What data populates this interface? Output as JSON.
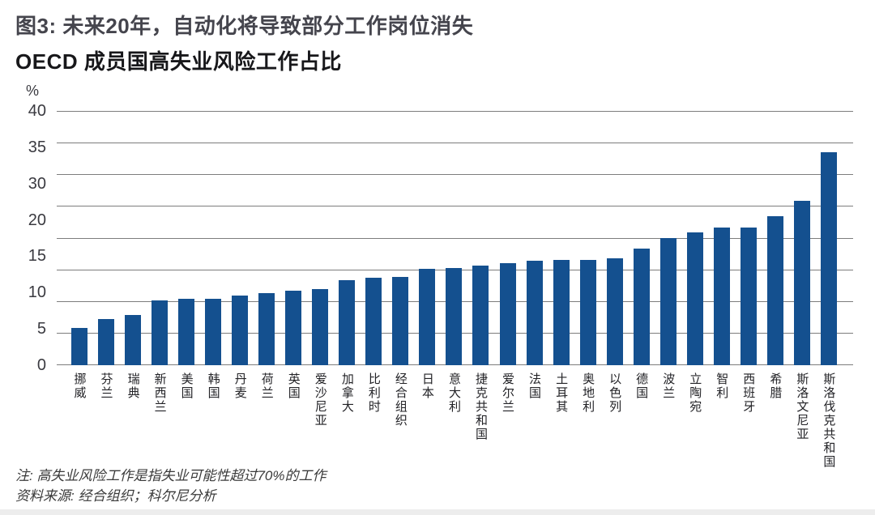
{
  "figure": {
    "title": "图3: 未来20年，自动化将导致部分工作岗位消失",
    "subtitle": "OECD 成员国高失业风险工作占比",
    "unit_label": "%",
    "note": "注: 高失业风险工作是指失业可能性超过70%的工作",
    "source": "资料来源: 经合组织；科尔尼分析"
  },
  "colors": {
    "bar": "#14508f",
    "gridline": "#7d7d7d",
    "title_text": "#45454d",
    "subtitle_text": "#17171a",
    "axis_text": "#3a3a40",
    "note_text": "#3a3a3a"
  },
  "chart_data": {
    "type": "bar",
    "title": "OECD 成员国高失业风险工作占比",
    "xlabel": "",
    "ylabel": "%",
    "ylim": [
      0,
      40
    ],
    "grid": true,
    "gridline_values": [
      0,
      5,
      10,
      15,
      20,
      25,
      30,
      35,
      40
    ],
    "y_axis_labels_top_to_bottom": [
      "40",
      "35",
      "30",
      "20",
      "15",
      "10",
      "5",
      "0"
    ],
    "categories": [
      "挪威",
      "芬兰",
      "瑞典",
      "新西兰",
      "美国",
      "韩国",
      "丹麦",
      "荷兰",
      "英国",
      "爱沙尼亚",
      "加拿大",
      "比利时",
      "经合组织",
      "日本",
      "意大利",
      "捷克共和国",
      "爱尔兰",
      "法国",
      "土耳其",
      "奥地利",
      "以色列",
      "德国",
      "波兰",
      "立陶宛",
      "智利",
      "西班牙",
      "希腊",
      "斯洛文尼亚",
      "斯洛伐克共和国"
    ],
    "values": [
      5.8,
      7.2,
      7.9,
      10.2,
      10.4,
      10.5,
      10.9,
      11.3,
      11.7,
      12.0,
      13.4,
      13.8,
      13.9,
      15.2,
      15.3,
      15.7,
      16.0,
      16.4,
      16.6,
      16.5,
      16.8,
      18.4,
      20.0,
      20.9,
      21.7,
      21.6,
      23.5,
      25.9,
      33.5
    ]
  }
}
